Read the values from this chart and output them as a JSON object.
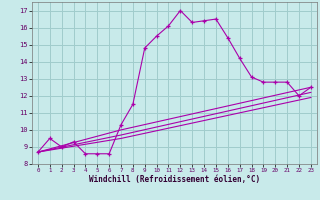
{
  "xlabel": "Windchill (Refroidissement éolien,°C)",
  "bg_color": "#c8eaea",
  "grid_color": "#a0cccc",
  "line_color": "#aa00aa",
  "x_ticks": [
    0,
    1,
    2,
    3,
    4,
    5,
    6,
    7,
    8,
    9,
    10,
    11,
    12,
    13,
    14,
    15,
    16,
    17,
    18,
    19,
    20,
    21,
    22,
    23
  ],
  "y_ticks": [
    8,
    9,
    10,
    11,
    12,
    13,
    14,
    15,
    16,
    17
  ],
  "ylim": [
    8.0,
    17.5
  ],
  "xlim": [
    -0.5,
    23.5
  ],
  "curve1_x": [
    0,
    1,
    2,
    3,
    4,
    5,
    6,
    7,
    8,
    9,
    10,
    11,
    12,
    13,
    14,
    15,
    16,
    17,
    18,
    19,
    20,
    21,
    22,
    23
  ],
  "curve1_y": [
    8.7,
    9.5,
    9.0,
    9.3,
    8.6,
    8.6,
    8.6,
    10.3,
    11.5,
    14.8,
    15.5,
    16.1,
    17.0,
    16.3,
    16.4,
    16.5,
    15.4,
    14.2,
    13.1,
    12.8,
    12.8,
    12.8,
    12.0,
    12.5
  ],
  "curve2_x": [
    0,
    7,
    23
  ],
  "curve2_y": [
    8.7,
    10.0,
    12.5
  ],
  "curve3_x": [
    0,
    7,
    23
  ],
  "curve3_y": [
    8.7,
    9.7,
    12.2
  ],
  "curve4_x": [
    0,
    7,
    23
  ],
  "curve4_y": [
    8.7,
    9.5,
    11.9
  ]
}
